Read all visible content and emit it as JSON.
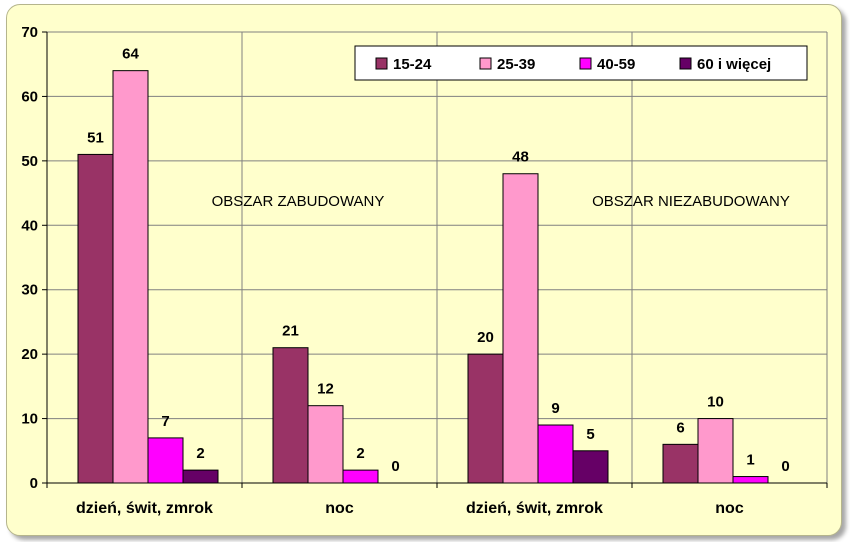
{
  "chart_data": {
    "type": "bar",
    "categories": [
      "dzień, świt, zmrok",
      "noc",
      "dzień, świt, zmrok",
      "noc"
    ],
    "series": [
      {
        "name": "15-24",
        "color": "#993366",
        "values": [
          51,
          21,
          20,
          6
        ]
      },
      {
        "name": "25-39",
        "color": "#ff99cc",
        "values": [
          64,
          12,
          48,
          10
        ]
      },
      {
        "name": "40-59",
        "color": "#ff00ff",
        "values": [
          7,
          2,
          9,
          1
        ]
      },
      {
        "name": "60 i więcej",
        "color": "#660066",
        "values": [
          2,
          0,
          5,
          0
        ]
      }
    ],
    "region_labels": [
      "OBSZAR ZABUDOWANY",
      "OBSZAR NIEZABUDOWANY"
    ],
    "ylim": [
      0,
      70
    ],
    "yticks": [
      0,
      10,
      20,
      30,
      40,
      50,
      60,
      70
    ],
    "grid": true,
    "legend": "top-right",
    "background_color": "#ffffcc",
    "title": "",
    "xlabel": "",
    "ylabel": ""
  }
}
